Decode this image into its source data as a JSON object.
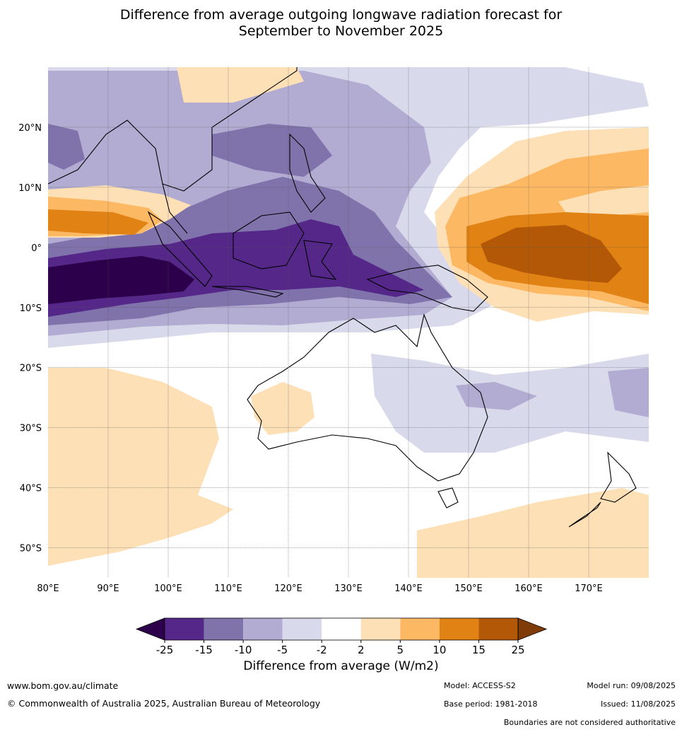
{
  "title_line1": "Difference from average outgoing longwave radiation forecast for",
  "title_line2": "September to November 2025",
  "map": {
    "lon_range": [
      80,
      180
    ],
    "lat_range": [
      -55,
      30
    ],
    "lon_ticks": [
      {
        "value": 80,
        "label": "80°E"
      },
      {
        "value": 90,
        "label": "90°E"
      },
      {
        "value": 100,
        "label": "100°E"
      },
      {
        "value": 110,
        "label": "110°E"
      },
      {
        "value": 120,
        "label": "120°E"
      },
      {
        "value": 130,
        "label": "130°E"
      },
      {
        "value": 140,
        "label": "140°E"
      },
      {
        "value": 150,
        "label": "150°E"
      },
      {
        "value": 160,
        "label": "160°E"
      },
      {
        "value": 170,
        "label": "170°E"
      }
    ],
    "lat_ticks": [
      {
        "value": 20,
        "label": "20°N"
      },
      {
        "value": 10,
        "label": "10°N"
      },
      {
        "value": 0,
        "label": "0°"
      },
      {
        "value": -10,
        "label": "10°S"
      },
      {
        "value": -20,
        "label": "20°S"
      },
      {
        "value": -30,
        "label": "30°S"
      },
      {
        "value": -40,
        "label": "40°S"
      },
      {
        "value": -50,
        "label": "50°S"
      }
    ]
  },
  "colorbar": {
    "title": "Difference from average (W/m2)",
    "ticks": [
      "-25",
      "-15",
      "-10",
      "-5",
      "-2",
      "2",
      "5",
      "10",
      "15",
      "25"
    ],
    "colors": {
      "under": "#2d004b",
      "bins": [
        "#542788",
        "#8073ac",
        "#b2abd2",
        "#d8daeb",
        "#ffffff",
        "#fee0b6",
        "#fdb863",
        "#e08214",
        "#b35806"
      ],
      "over": "#7f3b08"
    }
  },
  "footer": {
    "website": "www.bom.gov.au/climate",
    "copyright": "© Commonwealth of Australia 2025, Australian Bureau of Meteorology",
    "model": "Model: ACCESS-S2",
    "base_period": "Base period: 1981-2018",
    "model_run": "Model run: 09/08/2025",
    "issued": "Issued: 11/08/2025",
    "disclaimer": "Boundaries are not considered authoritative"
  }
}
